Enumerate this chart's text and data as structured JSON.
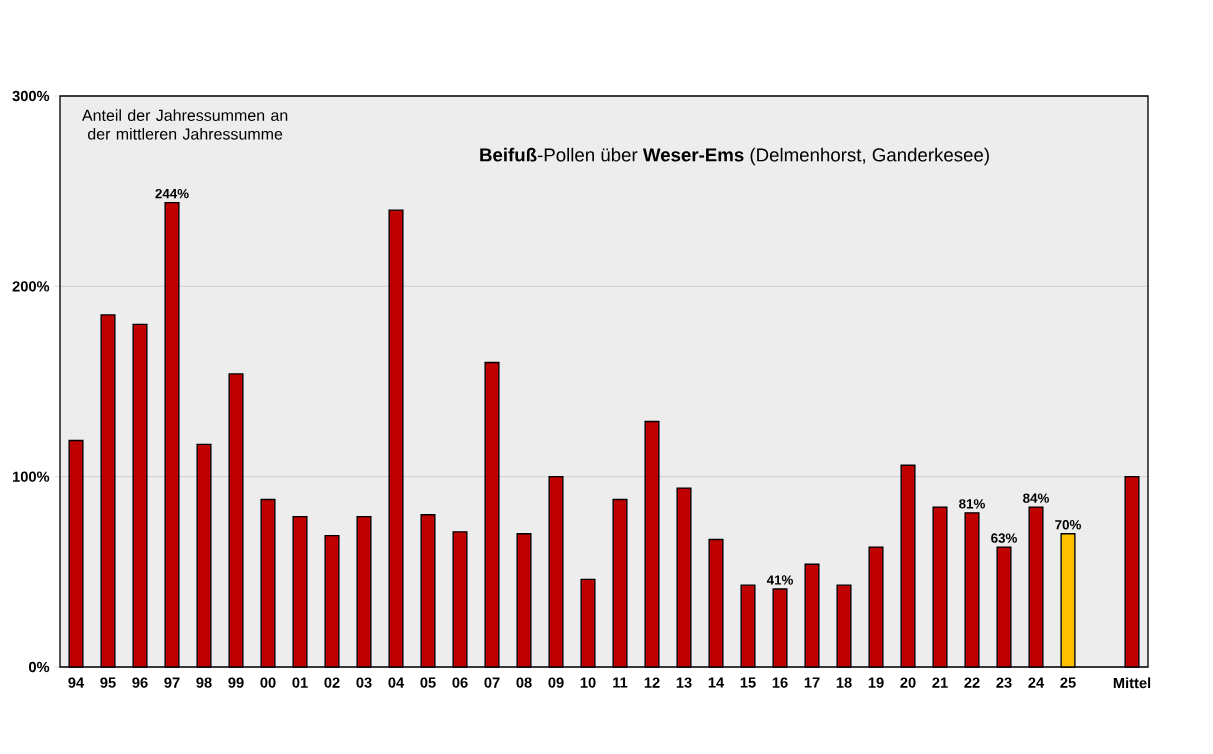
{
  "chart_data": {
    "type": "bar",
    "title": "**Beifuß**-Pollen über **Weser-Ems** (Delmenhorst, Ganderkesee)",
    "annotations": [
      "Anteil der Jahressummen an der mittleren Jahressumme"
    ],
    "categories": [
      "94",
      "95",
      "96",
      "97",
      "98",
      "99",
      "00",
      "01",
      "02",
      "03",
      "04",
      "05",
      "06",
      "07",
      "08",
      "09",
      "10",
      "11",
      "12",
      "13",
      "14",
      "15",
      "16",
      "17",
      "18",
      "19",
      "20",
      "21",
      "22",
      "23",
      "24",
      "25",
      null,
      "Mittel"
    ],
    "values": [
      119,
      185,
      180,
      244,
      117,
      154,
      88,
      79,
      69,
      79,
      240,
      80,
      71,
      160,
      70,
      100,
      46,
      88,
      129,
      94,
      67,
      43,
      41,
      54,
      43,
      63,
      106,
      84,
      81,
      63,
      84,
      70,
      null,
      100
    ],
    "colors": [
      "#c00000",
      "#c00000",
      "#c00000",
      "#c00000",
      "#c00000",
      "#c00000",
      "#c00000",
      "#c00000",
      "#c00000",
      "#c00000",
      "#c00000",
      "#c00000",
      "#c00000",
      "#c00000",
      "#c00000",
      "#c00000",
      "#c00000",
      "#c00000",
      "#c00000",
      "#c00000",
      "#c00000",
      "#c00000",
      "#c00000",
      "#c00000",
      "#c00000",
      "#c00000",
      "#c00000",
      "#c00000",
      "#c00000",
      "#c00000",
      "#c00000",
      "#ffc000",
      null,
      "#c00000"
    ],
    "value_labels": [
      null,
      null,
      null,
      "244%",
      null,
      null,
      null,
      null,
      null,
      null,
      null,
      null,
      null,
      null,
      null,
      null,
      null,
      null,
      null,
      null,
      null,
      null,
      "41%",
      null,
      null,
      null,
      null,
      null,
      "81%",
      "63%",
      "84%",
      "70%",
      null,
      null
    ],
    "ylim": [
      0,
      300
    ],
    "yticks": [
      {
        "value": 0,
        "label": "0%"
      },
      {
        "value": 100,
        "label": "100%"
      },
      {
        "value": 200,
        "label": "200%"
      },
      {
        "value": 300,
        "label": "300%"
      }
    ],
    "grid": "y"
  }
}
